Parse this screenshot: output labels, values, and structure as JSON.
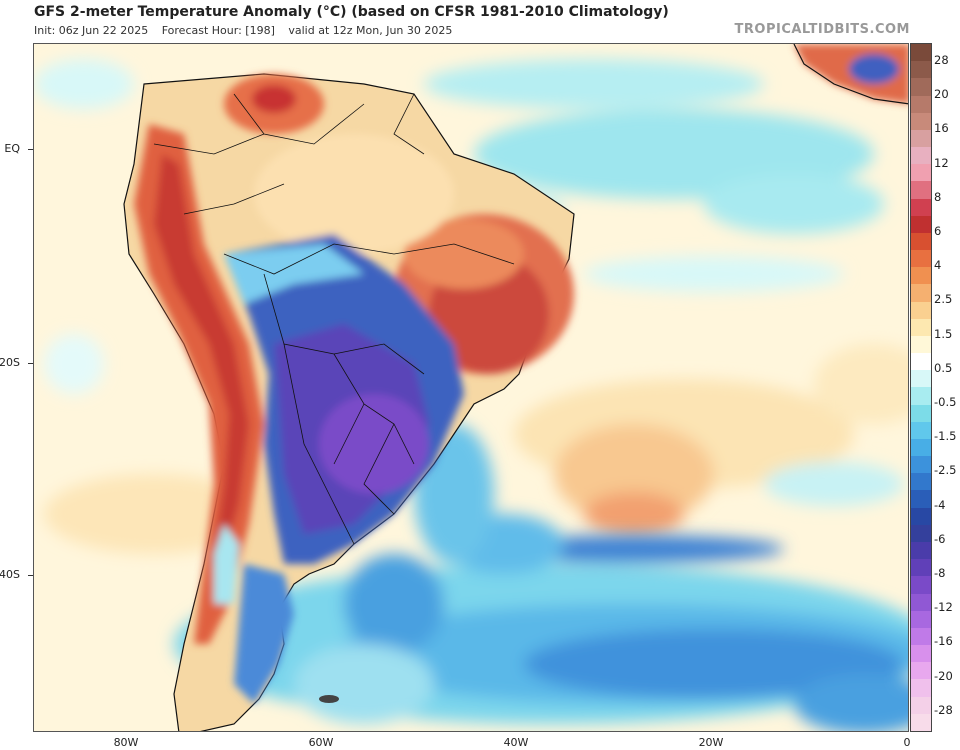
{
  "header": {
    "title": "GFS 2-meter Temperature Anomaly (°C) (based on CFSR 1981-2010 Climatology)",
    "init": "Init: 06z Jun 22 2025",
    "forecast_hour": "Forecast Hour: [198]",
    "valid": "valid at 12z Mon, Jun 30 2025"
  },
  "brand": "TROPICALTIDBITS.COM",
  "lat_labels": [
    "EQ",
    "20S",
    "40S"
  ],
  "lon_labels": [
    "80W",
    "60W",
    "40W",
    "20W",
    "0"
  ],
  "colorbar": {
    "labels": [
      "28",
      "20",
      "16",
      "12",
      "8",
      "6",
      "4",
      "2.5",
      "1.5",
      "0.5",
      "-0.5",
      "-1.5",
      "-2.5",
      "-4",
      "-6",
      "-8",
      "-12",
      "-16",
      "-20",
      "-28"
    ],
    "colors": [
      "#7a4a3a",
      "#8c5a4a",
      "#a06a5a",
      "#b67a6a",
      "#c88a7a",
      "#d8a0a0",
      "#e8b0c0",
      "#f0a0b0",
      "#e07080",
      "#d04050",
      "#c03030",
      "#d85030",
      "#e87040",
      "#f09050",
      "#f5b070",
      "#fad090",
      "#fde8b0",
      "#fff8d8",
      "#ffffff",
      "#d8f8f8",
      "#a8ecf0",
      "#7cdce8",
      "#60c8ec",
      "#48aee6",
      "#3c92dc",
      "#3278cc",
      "#2a5eb8",
      "#2848a4",
      "#34409c",
      "#4a3caa",
      "#6040b8",
      "#7a4ac8",
      "#9058d4",
      "#a868e0",
      "#c07ae8",
      "#d890ec",
      "#e8a8ee",
      "#f0c0ec",
      "#f4d0e8",
      "#f8dcea"
    ]
  },
  "colors": {
    "ocean_cool": "#9ee6ee",
    "cold_core": "#6a44c0",
    "warm_core": "#d44a3a",
    "border": "#111111"
  }
}
